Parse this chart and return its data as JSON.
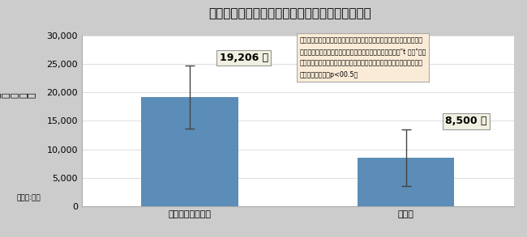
{
  "title": "平均残薬調整額における「かかりつけ」の有意差",
  "categories": [
    "かかりつけ薬剤師",
    "薬剤師"
  ],
  "values": [
    19206,
    8500
  ],
  "errors_upper": [
    5500,
    5000
  ],
  "errors_lower": [
    5500,
    5000
  ],
  "bar_color": "#5B8DB8",
  "ylabel_main": "平均\n残\n薬\n調\n整\n額",
  "ylabel_unit": "（単位:円）",
  "ylim": [
    0,
    30000
  ],
  "yticks": [
    0,
    5000,
    10000,
    15000,
    20000,
    25000,
    30000
  ],
  "annotation_line1": "本データについて：かかりつけ薬剤師とそうでない薬剤師が関係して残",
  "annotation_line2": "薬調整した平均額の差が、統計的に意味のある差かどうか\"t 検定\"を行",
  "annotation_line3": "い、「かかりつけ薬剤師が残薬調整をした平均額」の方が有意差がある",
  "annotation_line4": "と判断できた。（p<00.5）",
  "label1": "19,206 円",
  "label2": "8,500 円",
  "bg_color": "#FFFFFF",
  "outer_bg": "#CCCCCC",
  "annotation_bg": "#FAEBD7",
  "annotation_border": "#AAAAAA",
  "bar_width": 0.45
}
